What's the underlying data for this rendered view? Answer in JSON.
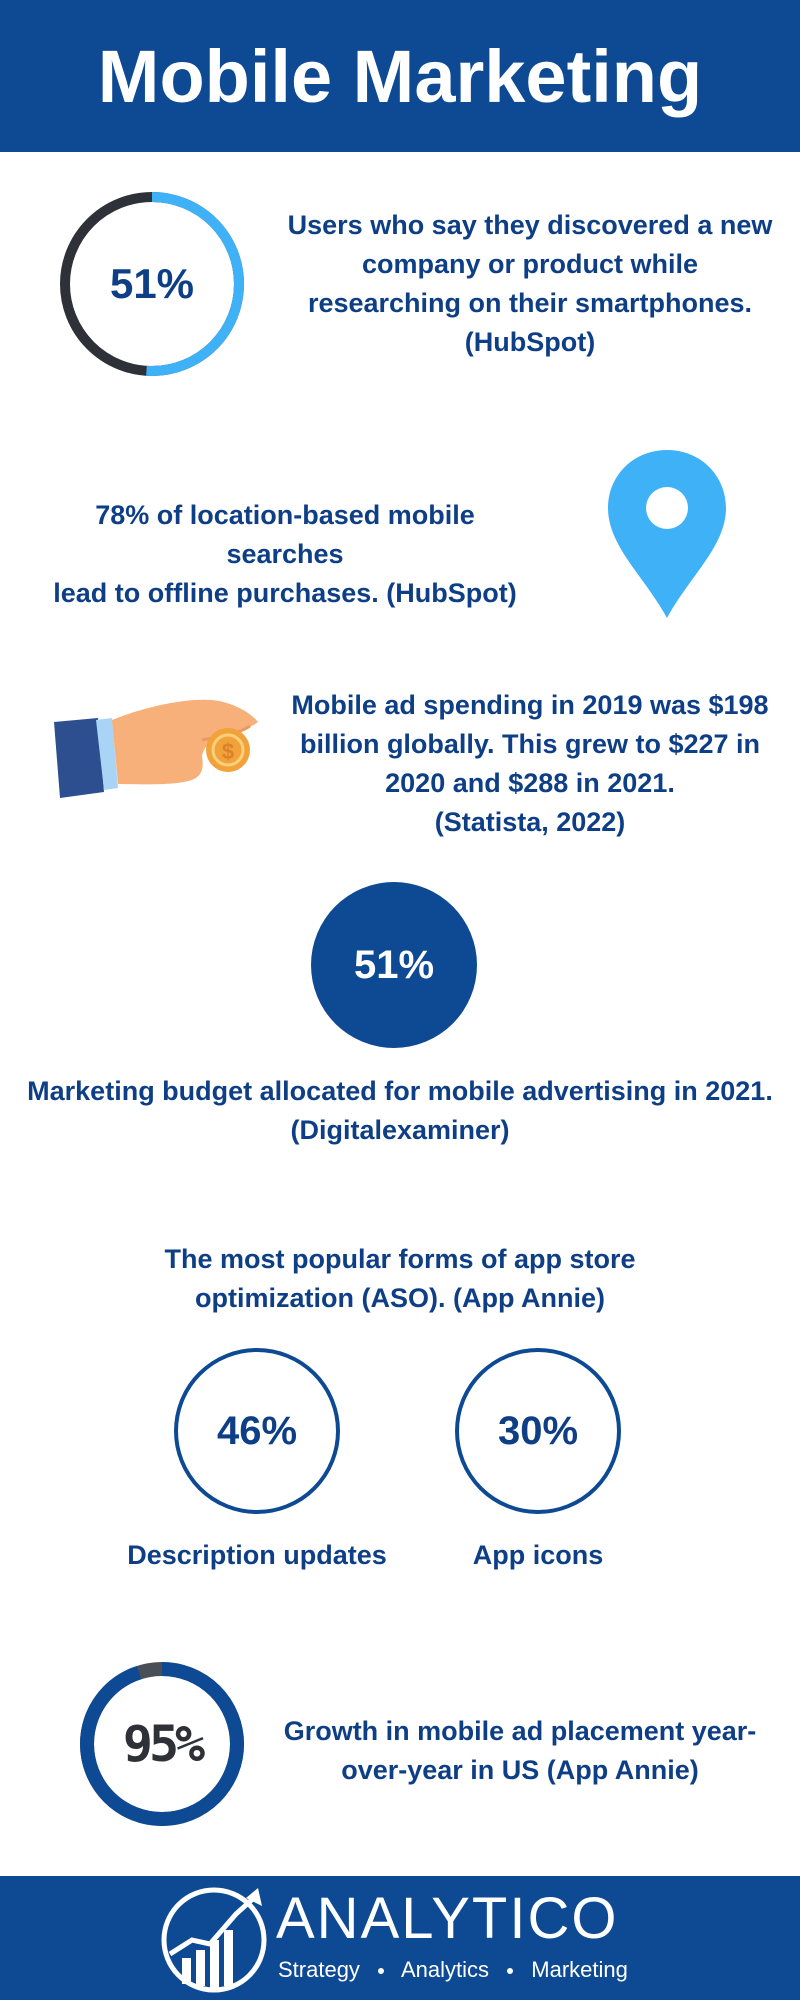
{
  "header": {
    "title": "Mobile Marketing"
  },
  "stats": {
    "discovery": {
      "value": "51%",
      "percent": 51,
      "text": "Users who say they discovered a new company or product while researching on their smartphones. (HubSpot)",
      "line1": "Users who say they discovered a new",
      "line2": "company or product while",
      "line3": "researching on their smartphones.",
      "line4": "(HubSpot)"
    },
    "location": {
      "line1": "78% of location-based mobile searches",
      "line2": "lead to offline purchases. (HubSpot)",
      "icon": "location-pin-icon"
    },
    "ad_spending": {
      "line1": "Mobile ad spending in 2019 was $198",
      "line2": "billion globally. This grew to $227 in",
      "line3": "2020 and $288 in 2021.",
      "line4": "(Statista, 2022)",
      "icon": "hand-coin-icon"
    },
    "budget": {
      "value": "51%",
      "line1": "Marketing budget allocated for mobile advertising in 2021.",
      "line2": "(Digitalexaminer)"
    },
    "aso": {
      "line1": "The most popular forms of app store",
      "line2": "optimization (ASO). (App Annie)",
      "items": [
        {
          "value": "46%",
          "label": "Description updates"
        },
        {
          "value": "30%",
          "label": "App icons"
        }
      ]
    },
    "growth": {
      "value": "95%",
      "percent": 95,
      "line1": "Growth in mobile ad placement year-",
      "line2": "over-year in US (App Annie)"
    }
  },
  "footer": {
    "brand": "ANALYTICO",
    "tagline": [
      "Strategy",
      "Analytics",
      "Marketing"
    ],
    "logo_icon": "growth-chart-logo-icon"
  },
  "colors": {
    "navy": "#0e4a94",
    "text": "#0e3f86",
    "light_blue": "#3eb1f7",
    "dark_ring": "#2e3138",
    "skin": "#f8b07a",
    "coin": "#f2a23a"
  }
}
